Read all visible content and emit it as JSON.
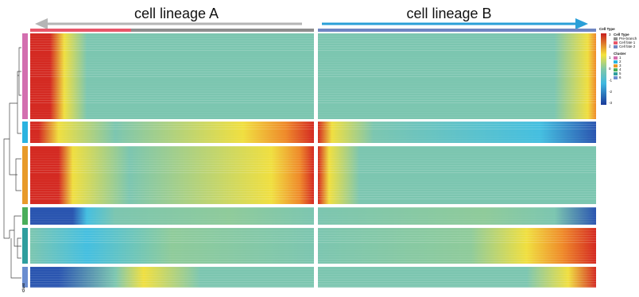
{
  "labels": {
    "left": "cell lineage A",
    "right": "cell lineage B"
  },
  "legend": {
    "cell_type_title": "Cell Type",
    "cell_types": [
      {
        "name": "Pre-branch",
        "color": "#8e8e8e"
      },
      {
        "name": "Cell fate 1",
        "color": "#e8566a"
      },
      {
        "name": "Cell fate 2",
        "color": "#6f86c2"
      }
    ],
    "cluster_title": "Cluster",
    "clusters": [
      {
        "name": "1",
        "color": "#d36fb0"
      },
      {
        "name": "2",
        "color": "#2bb3e0"
      },
      {
        "name": "3",
        "color": "#e89a2a"
      },
      {
        "name": "4",
        "color": "#4aae5a"
      },
      {
        "name": "5",
        "color": "#2f9e9e"
      },
      {
        "name": "6",
        "color": "#6b8ed0"
      }
    ],
    "scale_ticks": [
      3,
      2,
      1,
      0,
      -1,
      -2,
      -3
    ]
  },
  "row_label": "Clust"
}
